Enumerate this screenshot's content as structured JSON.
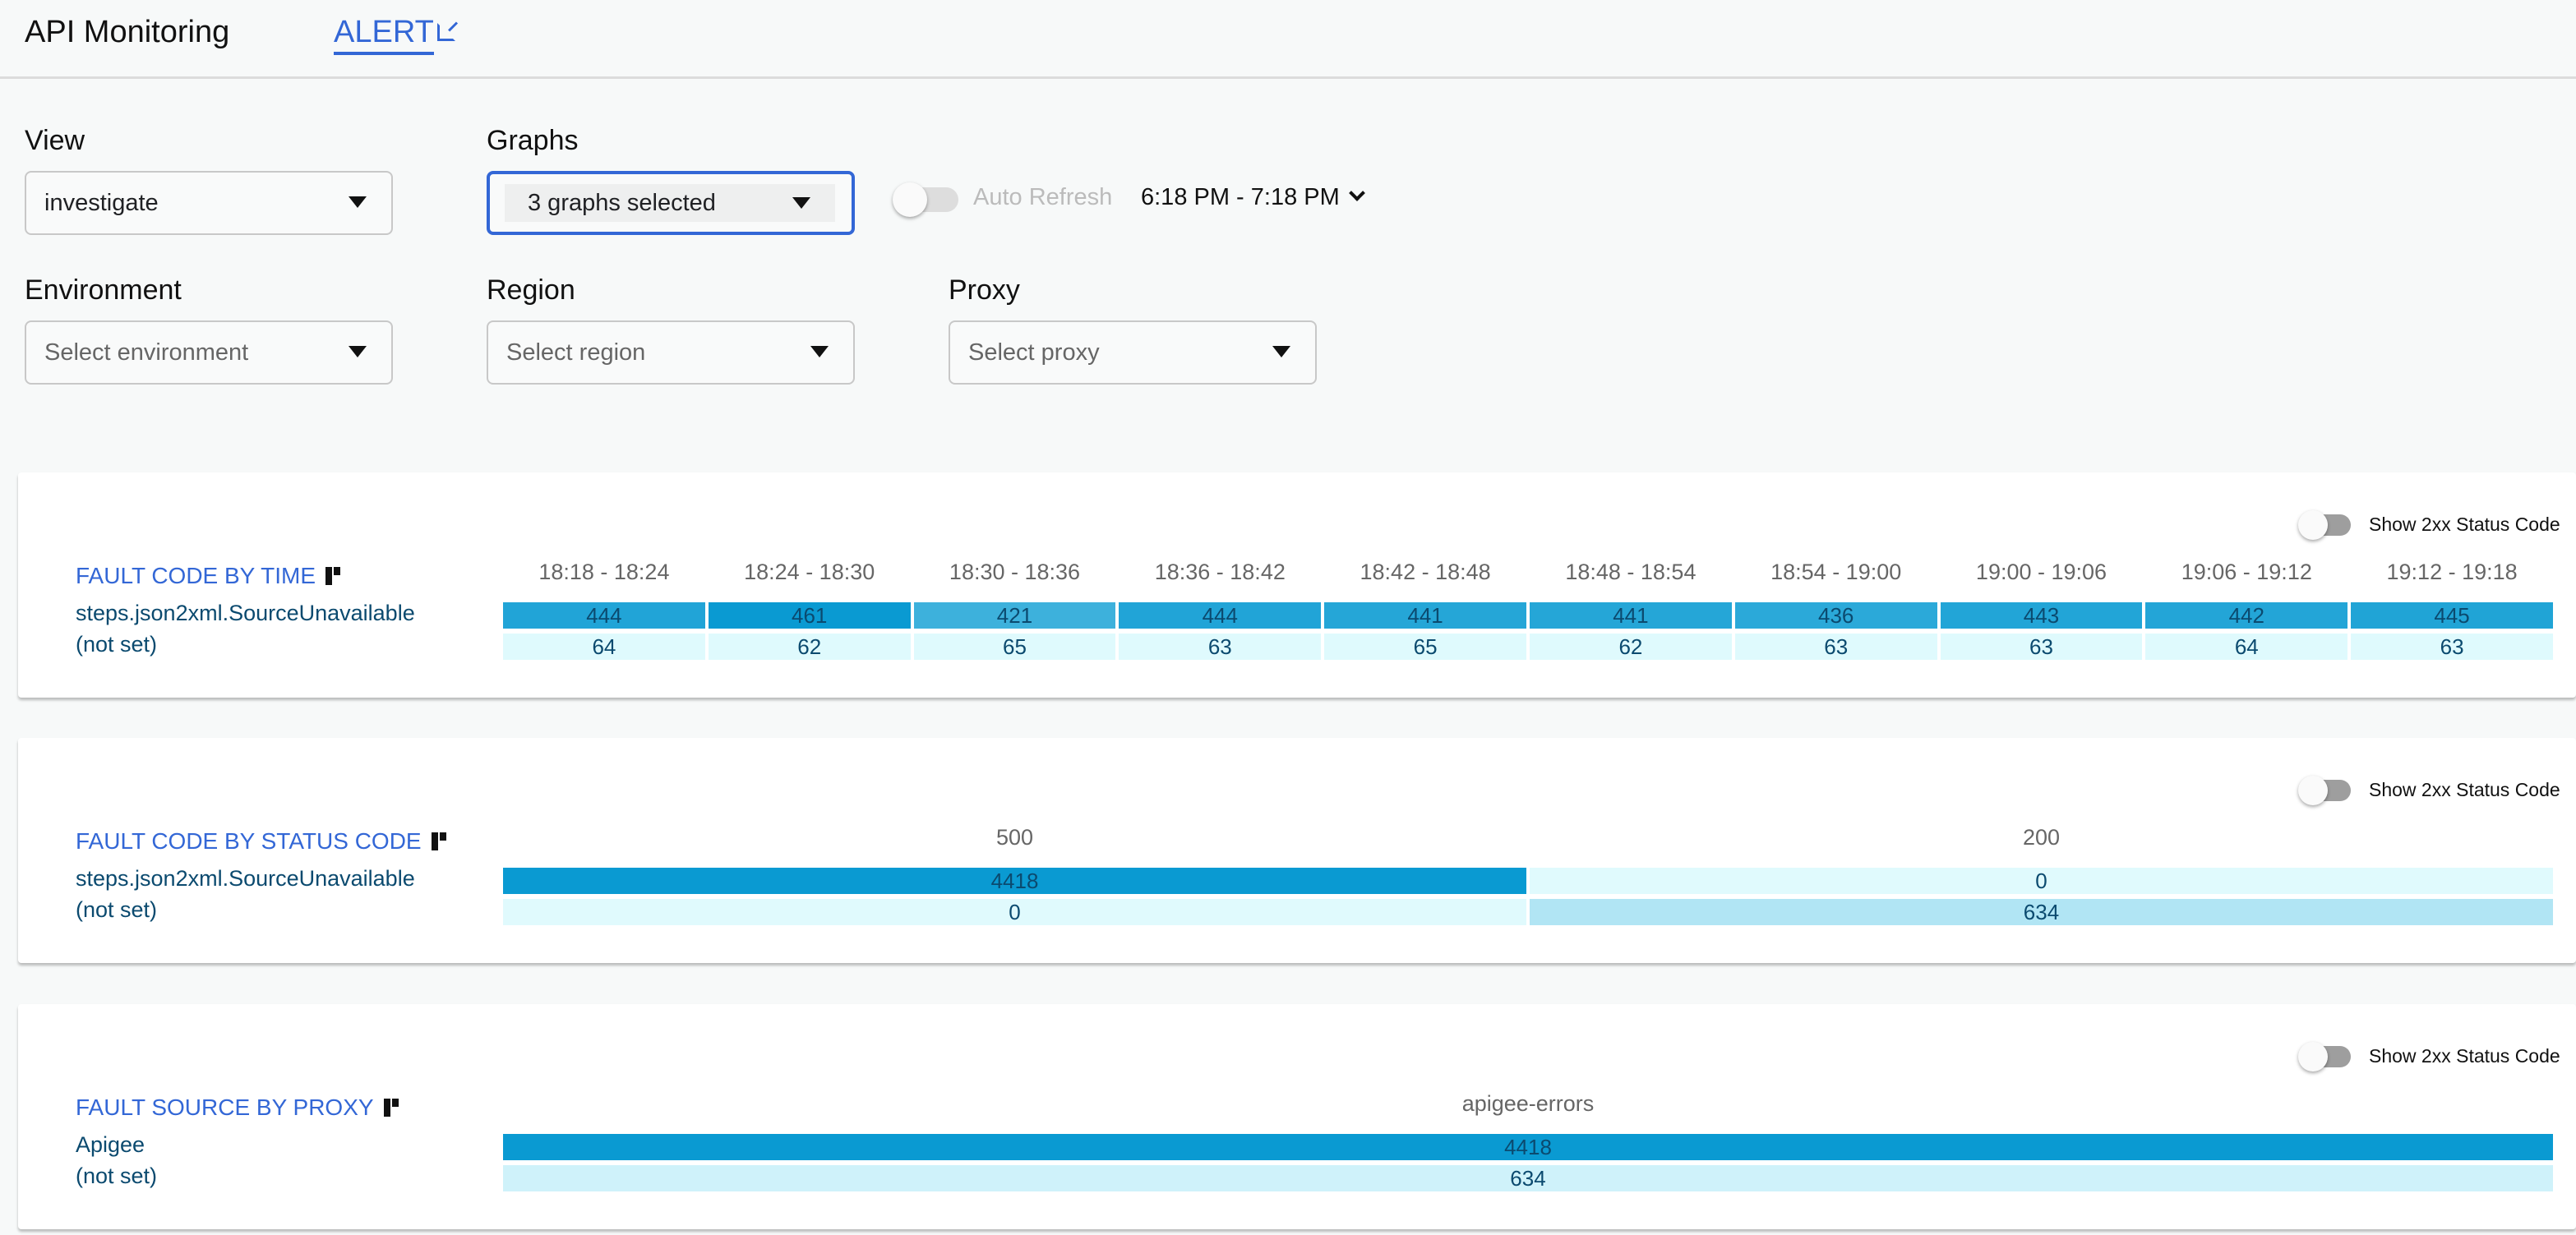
{
  "header": {
    "title": "API Monitoring",
    "alert_link": "ALERT",
    "alert_icon": "external-link-icon"
  },
  "filters": {
    "view": {
      "label": "View",
      "value": "investigate"
    },
    "graphs": {
      "label": "Graphs",
      "value": "3 graphs selected"
    },
    "auto_refresh": {
      "label": "Auto Refresh",
      "enabled": false
    },
    "time_range": "6:18 PM - 7:18 PM",
    "environment": {
      "label": "Environment",
      "placeholder": "Select environment"
    },
    "region": {
      "label": "Region",
      "placeholder": "Select region"
    },
    "proxy": {
      "label": "Proxy",
      "placeholder": "Select proxy"
    }
  },
  "colors": {
    "accent": "#3367d6",
    "cell_max": "#0a9ad2",
    "cell_min": "#e0fafd",
    "cell_text": "#0b4a6f"
  },
  "cards": [
    {
      "title": "FAULT CODE BY TIME",
      "toggle_label": "Show 2xx Status Code",
      "toggle_on": false,
      "columns": [
        "18:18 - 18:24",
        "18:24 - 18:30",
        "18:30 - 18:36",
        "18:36 - 18:42",
        "18:42 - 18:48",
        "18:48 - 18:54",
        "18:54 - 19:00",
        "19:00 - 19:06",
        "19:06 - 19:12",
        "19:12 - 19:18"
      ],
      "rows": [
        {
          "label": "steps.json2xml.SourceUnavailable",
          "values": [
            444,
            461,
            421,
            444,
            441,
            441,
            436,
            443,
            442,
            445
          ]
        },
        {
          "label": "(not set)",
          "values": [
            64,
            62,
            65,
            63,
            65,
            62,
            63,
            63,
            64,
            63
          ]
        }
      ]
    },
    {
      "title": "FAULT CODE BY STATUS CODE",
      "toggle_label": "Show 2xx Status Code",
      "toggle_on": false,
      "columns": [
        "500",
        "200"
      ],
      "rows": [
        {
          "label": "steps.json2xml.SourceUnavailable",
          "values": [
            4418,
            0
          ]
        },
        {
          "label": "(not set)",
          "values": [
            0,
            634
          ]
        }
      ]
    },
    {
      "title": "FAULT SOURCE BY PROXY",
      "toggle_label": "Show 2xx Status Code",
      "toggle_on": false,
      "columns": [
        "apigee-errors"
      ],
      "rows": [
        {
          "label": "Apigee",
          "values": [
            4418
          ]
        },
        {
          "label": "(not set)",
          "values": [
            634
          ]
        }
      ]
    }
  ]
}
